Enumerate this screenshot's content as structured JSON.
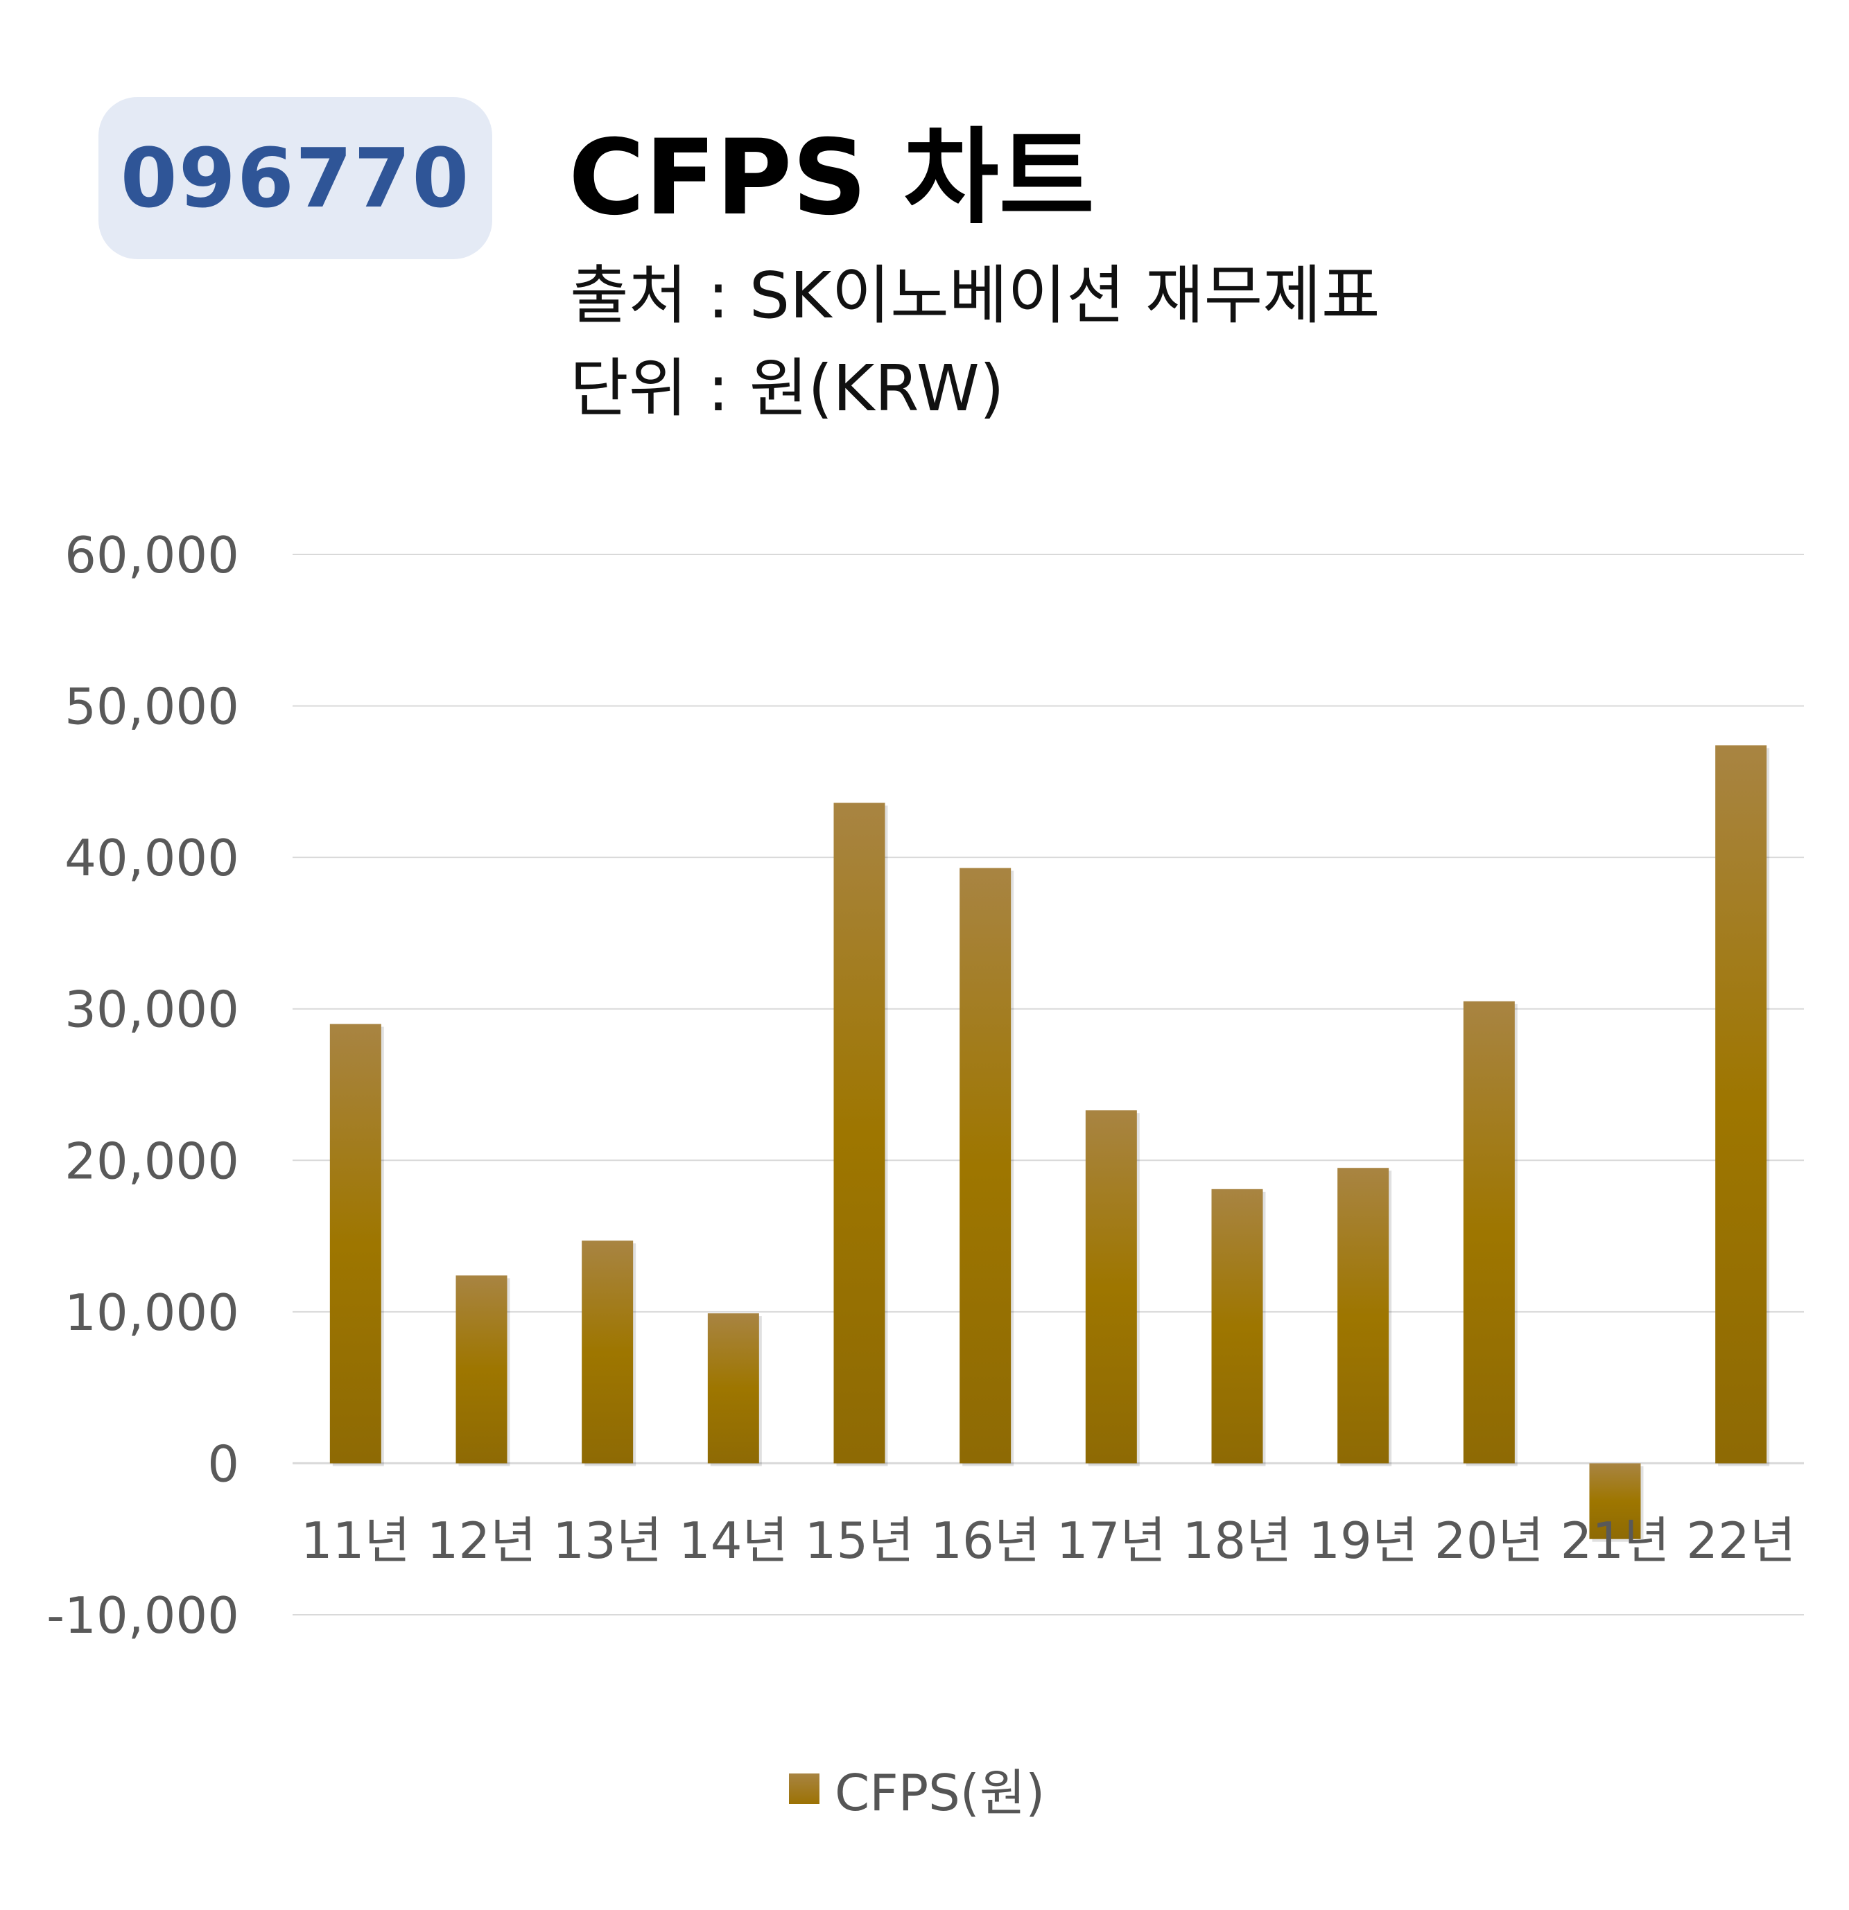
{
  "header": {
    "ticker": "096770",
    "title": "CFPS 차트",
    "source": "출처 : SK이노베이션 재무제표",
    "unit": "단위 : 원(KRW)"
  },
  "colors": {
    "bar_top": "#a88442",
    "bar_mid": "#9e7600",
    "bar_bottom": "#8e6a04",
    "badge_bg": "#e4eaf5",
    "badge_text": "#2f5597",
    "grid": "#d9d9d9",
    "axis_text": "#595959"
  },
  "chart_data": {
    "type": "bar",
    "categories": [
      "11년",
      "12년",
      "13년",
      "14년",
      "15년",
      "16년",
      "17년",
      "18년",
      "19년",
      "20년",
      "21년",
      "22년"
    ],
    "series": [
      {
        "name": "CFPS(원)",
        "values": [
          29000,
          12400,
          14700,
          9900,
          43600,
          39300,
          23300,
          18100,
          19500,
          30500,
          -5000,
          47400
        ]
      }
    ],
    "ylim": [
      -10000,
      60000
    ],
    "yticks": [
      60000,
      50000,
      40000,
      30000,
      20000,
      10000,
      0,
      -10000
    ],
    "ytick_labels": [
      "60,000",
      "50,000",
      "40,000",
      "30,000",
      "20,000",
      "10,000",
      "0",
      "-10,000"
    ],
    "grid": true,
    "legend": "bottom-center"
  }
}
